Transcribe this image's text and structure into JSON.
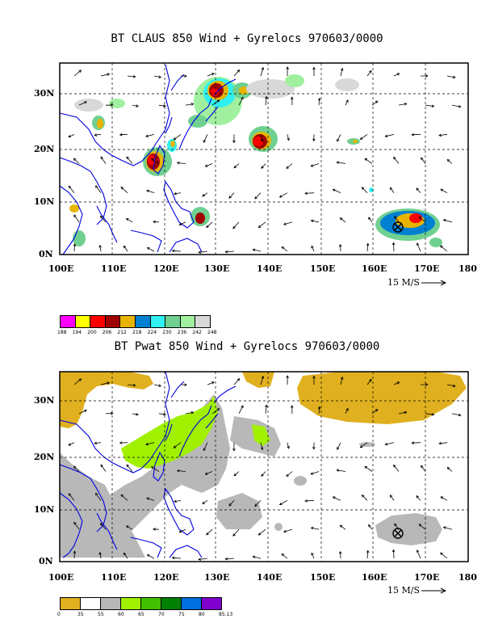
{
  "panels": [
    {
      "id": "top",
      "title": "BT CLAUS 850 Wind + Gyrelocs 970603/0000",
      "lat_labels": [
        "30N",
        "20N",
        "10N",
        "0N"
      ],
      "lon_labels": [
        "100E",
        "110E",
        "120E",
        "130E",
        "140E",
        "150E",
        "160E",
        "170E",
        "180"
      ],
      "scale_label": "15 M/S",
      "colorbar": {
        "labels": [
          "188",
          "194",
          "200",
          "206",
          "212",
          "218",
          "224",
          "230",
          "236",
          "242",
          "248"
        ],
        "colors": [
          "#ff00ff",
          "#ffff00",
          "#ff0000",
          "#a00000",
          "#e8b400",
          "#0080d0",
          "#30f0f0",
          "#70d090",
          "#a0f0a0",
          "#d8d8d8"
        ]
      }
    },
    {
      "id": "bottom",
      "title": "BT Pwat 850 Wind + Gyrelocs 970603/0000",
      "lat_labels": [
        "30N",
        "20N",
        "10N",
        "0N"
      ],
      "lon_labels": [
        "100E",
        "110E",
        "120E",
        "130E",
        "140E",
        "150E",
        "160E",
        "170E",
        "180"
      ],
      "scale_label": "15 M/S",
      "colorbar": {
        "labels": [
          "0",
          "35",
          "55",
          "60",
          "65",
          "70",
          "75",
          "80",
          "85.13"
        ],
        "colors": [
          "#e0b020",
          "#ffffff",
          "#b8b8b8",
          "#a0f000",
          "#40c000",
          "#008000",
          "#0070e0",
          "#8000d0"
        ]
      }
    }
  ],
  "gyre_location": {
    "lon": 166,
    "lat": 5
  },
  "map": {
    "lon_range": [
      100,
      180
    ],
    "lat_range": [
      0,
      36
    ]
  }
}
